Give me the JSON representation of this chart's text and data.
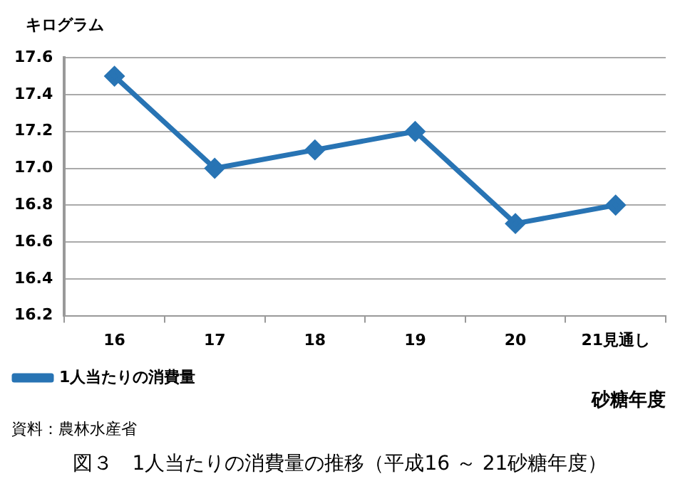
{
  "chart_data": {
    "type": "line",
    "title": "図３　1人当たりの消費量の推移（平成16 ～ 21砂糖年度）",
    "ylabel": "キログラム",
    "xlabel": "砂糖年度",
    "categories": [
      "16",
      "17",
      "18",
      "19",
      "20",
      "21見通し"
    ],
    "series": [
      {
        "name": "1人当たりの消費量",
        "color": "#2874b4",
        "values": [
          17.5,
          17.0,
          17.1,
          17.2,
          16.7,
          16.8
        ]
      }
    ],
    "ylim": [
      16.2,
      17.6
    ],
    "yticks": [
      16.2,
      16.4,
      16.6,
      16.8,
      {
        "value": 17,
        "label": "17.0"
      },
      17.2,
      17.4,
      17.6
    ],
    "grid": "y",
    "legend": "bottom left",
    "marker": "diamond",
    "line_style": "solid",
    "annotations": [
      "資料：農林水産省"
    ]
  }
}
